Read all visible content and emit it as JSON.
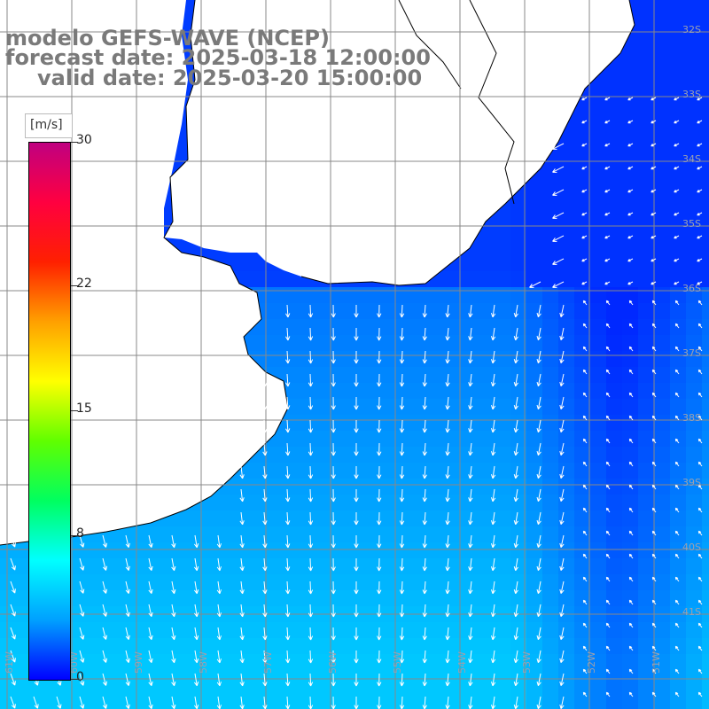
{
  "title": {
    "line1": "modelo GEFS-WAVE (NCEP)",
    "line2": "forecast date: 2025-03-18 12:00:00",
    "line3": "valid date: 2025-03-20 15:00:00"
  },
  "colorbar": {
    "unit": "[m/s]",
    "min": 0,
    "max": 30,
    "ticks": [
      {
        "value": 30,
        "label": "30"
      },
      {
        "value": 22,
        "label": "22"
      },
      {
        "value": 15,
        "label": "15"
      },
      {
        "value": 8,
        "label": "8"
      },
      {
        "value": 0,
        "label": "0"
      }
    ],
    "colors": [
      "#0000ff",
      "#00a0ff",
      "#00ffff",
      "#00ff60",
      "#60ff00",
      "#ffff00",
      "#ffa000",
      "#ff2000",
      "#ff0040",
      "#c00080"
    ]
  },
  "map": {
    "lat_labels": [
      "32S",
      "33S",
      "34S",
      "35S",
      "36S",
      "37S",
      "38S",
      "39S",
      "40S",
      "41S"
    ],
    "lon_labels": [
      "61W",
      "60W",
      "59W",
      "58W",
      "57W",
      "56W",
      "55W",
      "54W",
      "53W",
      "52W",
      "51W"
    ],
    "land_color": "#ffffff",
    "coast_color": "#000000",
    "grid_color": "#888888"
  }
}
